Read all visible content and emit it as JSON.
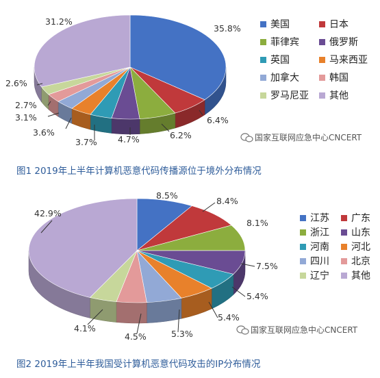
{
  "chart_data": [
    {
      "type": "pie",
      "title": "",
      "caption": "图1 2019年上半年计算机恶意代码传播源位于境外分布情况",
      "categories": [
        "美国",
        "日本",
        "菲律宾",
        "俄罗斯",
        "英国",
        "马来西亚",
        "加拿大",
        "韩国",
        "罗马尼亚",
        "其他"
      ],
      "values": [
        35.8,
        6.4,
        6.2,
        4.7,
        3.7,
        3.6,
        3.1,
        2.7,
        2.6,
        31.2
      ],
      "value_labels": [
        "35.8%",
        "6.4%",
        "6.2%",
        "4.7%",
        "3.7%",
        "3.6%",
        "3.1%",
        "2.7%",
        "2.6%",
        "31.2%"
      ],
      "colors": [
        "#4472c4",
        "#c0393b",
        "#8cad3e",
        "#6a4c93",
        "#2f9bb5",
        "#e8812b",
        "#92a9d6",
        "#e39a9a",
        "#c7d79b",
        "#b9a8d3"
      ],
      "legend_position": "right",
      "three_d": true
    },
    {
      "type": "pie",
      "title": "",
      "caption": "图2 2019年上半年我国受计算机恶意代码攻击的IP分布情况",
      "categories": [
        "江苏",
        "广东",
        "浙江",
        "山东",
        "河南",
        "河北",
        "四川",
        "北京",
        "辽宁",
        "其他"
      ],
      "values": [
        8.5,
        8.4,
        8.1,
        7.5,
        5.4,
        5.4,
        5.3,
        4.5,
        4.1,
        42.9
      ],
      "value_labels": [
        "8.5%",
        "8.4%",
        "8.1%",
        "7.5%",
        "5.4%",
        "5.4%",
        "5.3%",
        "4.5%",
        "4.1%",
        "42.9%"
      ],
      "colors": [
        "#4472c4",
        "#c0393b",
        "#8cad3e",
        "#6a4c93",
        "#2f9bb5",
        "#e8812b",
        "#92a9d6",
        "#e39a9a",
        "#c7d79b",
        "#b9a8d3"
      ],
      "legend_position": "right",
      "three_d": true
    }
  ],
  "watermark": "国家互联网应急中心CNCERT",
  "watermark_icon": "wechat-icon"
}
